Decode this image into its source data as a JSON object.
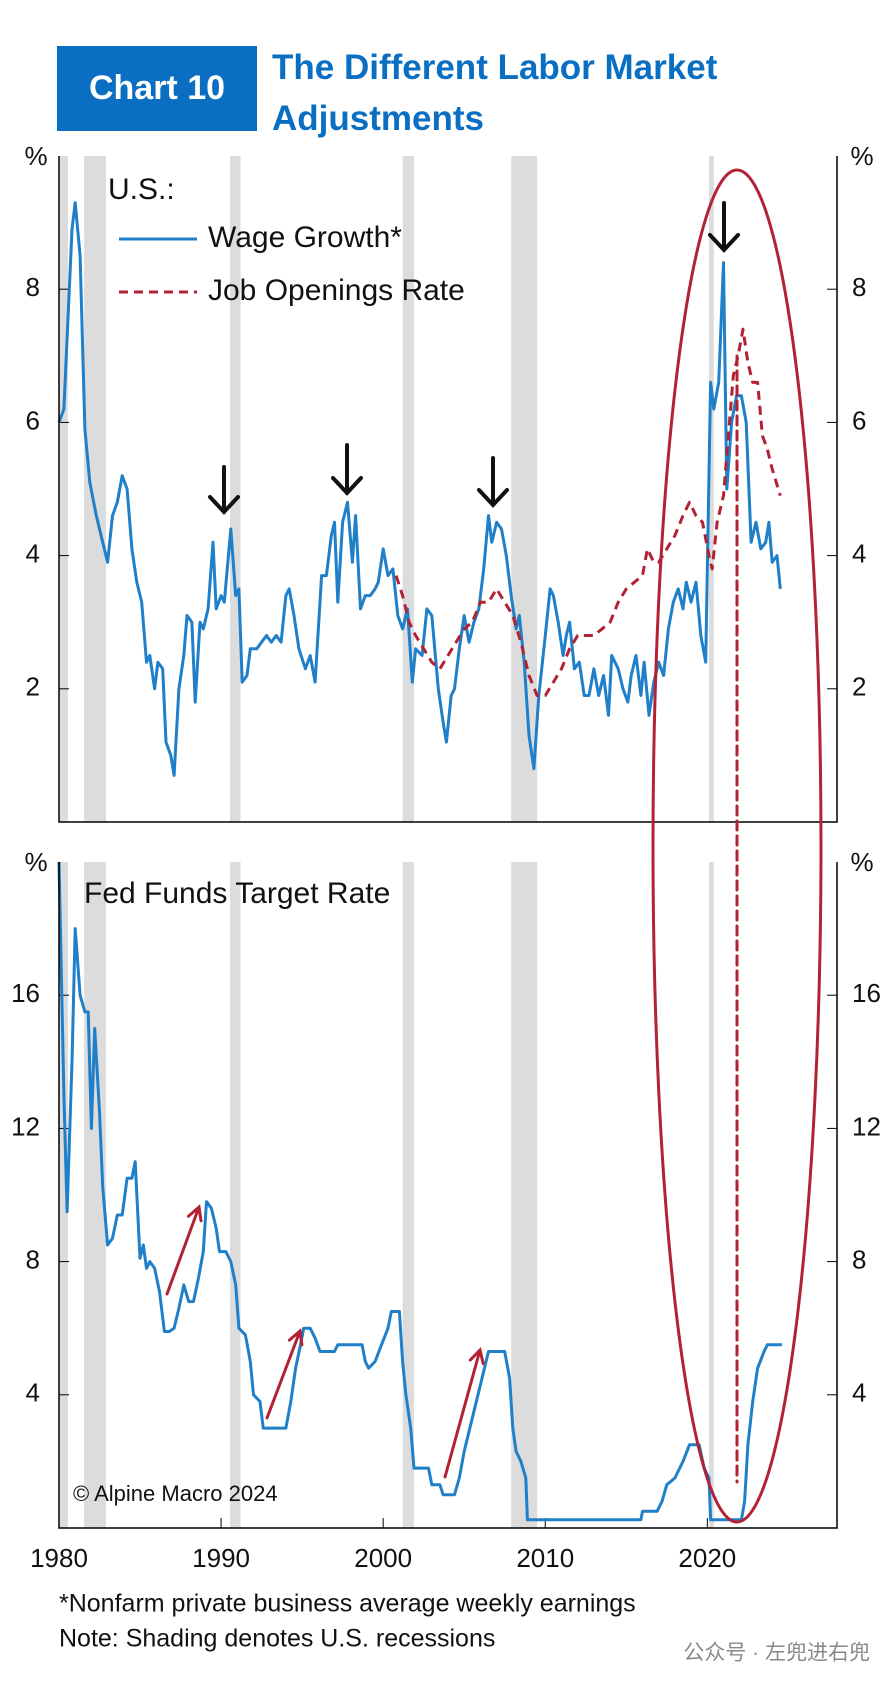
{
  "header": {
    "badge": "Chart 10",
    "title": "The Different Labor Market Adjustments"
  },
  "chart_data": [
    {
      "type": "line",
      "legend_title": "U.S.:",
      "ylabel": "%",
      "xlim": [
        1980,
        2028
      ],
      "ylim": [
        0,
        10
      ],
      "yticks": [
        2,
        4,
        6,
        8
      ],
      "recessions": [
        [
          1980.0,
          1980.55
        ],
        [
          1981.55,
          1982.9
        ],
        [
          1990.55,
          1991.2
        ],
        [
          2001.2,
          2001.9
        ],
        [
          2007.9,
          2009.5
        ],
        [
          2020.1,
          2020.4
        ]
      ],
      "series": [
        {
          "name": "Wage Growth*",
          "color": "#1f7fc8",
          "dash": false,
          "x": [
            1980,
            1980.3,
            1980.8,
            1981,
            1981.3,
            1981.6,
            1981.9,
            1982.3,
            1982.6,
            1983,
            1983.3,
            1983.6,
            1983.9,
            1984.2,
            1984.5,
            1984.8,
            1985.1,
            1985.4,
            1985.6,
            1985.9,
            1986.1,
            1986.4,
            1986.6,
            1986.9,
            1987.1,
            1987.4,
            1987.7,
            1987.9,
            1988.2,
            1988.4,
            1988.7,
            1988.9,
            1989.2,
            1989.5,
            1989.7,
            1990,
            1990.2,
            1990.6,
            1990.9,
            1991.1,
            1991.3,
            1991.6,
            1991.8,
            1992.2,
            1992.5,
            1992.8,
            1993.1,
            1993.4,
            1993.7,
            1994,
            1994.2,
            1994.5,
            1994.8,
            1995.2,
            1995.5,
            1995.8,
            1996.2,
            1996.5,
            1996.8,
            1997,
            1997.2,
            1997.5,
            1997.8,
            1998.1,
            1998.3,
            1998.6,
            1998.9,
            1999.2,
            1999.5,
            1999.7,
            2000,
            2000.3,
            2000.6,
            2000.9,
            2001.2,
            2001.5,
            2001.8,
            2002,
            2002.4,
            2002.7,
            2003,
            2003.4,
            2003.7,
            2003.9,
            2004.2,
            2004.4,
            2004.7,
            2005,
            2005.3,
            2005.6,
            2005.9,
            2006.2,
            2006.5,
            2006.7,
            2007,
            2007.3,
            2007.6,
            2007.9,
            2008.2,
            2008.4,
            2008.7,
            2009,
            2009.3,
            2009.6,
            2010,
            2010.3,
            2010.5,
            2010.8,
            2011.1,
            2011.3,
            2011.5,
            2011.8,
            2012.1,
            2012.4,
            2012.7,
            2013,
            2013.3,
            2013.6,
            2013.9,
            2014.1,
            2014.5,
            2014.8,
            2015.1,
            2015.3,
            2015.6,
            2015.9,
            2016.1,
            2016.4,
            2016.7,
            2017,
            2017.3,
            2017.6,
            2017.9,
            2018.2,
            2018.5,
            2018.7,
            2019,
            2019.3,
            2019.6,
            2019.9,
            2020.2,
            2020.4,
            2020.7,
            2021,
            2021.2,
            2021.5,
            2021.8,
            2022.1,
            2022.4,
            2022.7,
            2023,
            2023.3,
            2023.6,
            2023.8,
            2024,
            2024.3,
            2024.5
          ],
          "values": [
            6.0,
            6.2,
            8.9,
            9.3,
            8.5,
            5.9,
            5.1,
            4.6,
            4.3,
            3.9,
            4.6,
            4.8,
            5.2,
            5.0,
            4.1,
            3.6,
            3.3,
            2.4,
            2.5,
            2.0,
            2.4,
            2.3,
            1.2,
            1.0,
            0.7,
            2.0,
            2.5,
            3.1,
            3.0,
            1.8,
            3.0,
            2.9,
            3.2,
            4.2,
            3.2,
            3.4,
            3.3,
            4.4,
            3.4,
            3.5,
            2.1,
            2.2,
            2.6,
            2.6,
            2.7,
            2.8,
            2.7,
            2.8,
            2.7,
            3.4,
            3.5,
            3.1,
            2.6,
            2.3,
            2.5,
            2.1,
            3.7,
            3.7,
            4.3,
            4.5,
            3.3,
            4.5,
            4.8,
            3.9,
            4.6,
            3.2,
            3.4,
            3.4,
            3.5,
            3.6,
            4.1,
            3.7,
            3.8,
            3.1,
            2.9,
            3.2,
            2.1,
            2.6,
            2.5,
            3.2,
            3.1,
            2.0,
            1.5,
            1.2,
            1.9,
            2.0,
            2.6,
            3.1,
            2.7,
            3.0,
            3.2,
            3.8,
            4.6,
            4.2,
            4.5,
            4.4,
            4.0,
            3.4,
            2.9,
            3.1,
            2.4,
            1.3,
            0.8,
            1.9,
            2.8,
            3.5,
            3.4,
            3.0,
            2.5,
            2.8,
            3.0,
            2.3,
            2.4,
            1.9,
            1.9,
            2.3,
            1.9,
            2.2,
            1.6,
            2.5,
            2.3,
            2.0,
            1.8,
            2.2,
            2.5,
            1.9,
            2.4,
            1.6,
            2.1,
            2.4,
            2.2,
            2.9,
            3.3,
            3.5,
            3.2,
            3.6,
            3.3,
            3.6,
            2.8,
            2.4,
            6.6,
            6.2,
            6.6,
            8.4,
            5.0,
            6.0,
            6.4,
            6.4,
            6.0,
            4.2,
            4.5,
            4.1,
            4.2,
            4.5,
            3.9,
            4.0,
            3.5
          ]
        },
        {
          "name": "Job Openings Rate",
          "color": "#b22234",
          "dash": true,
          "x": [
            2000.8,
            2001.2,
            2001.6,
            2002,
            2002.5,
            2003,
            2003.5,
            2004,
            2004.5,
            2005,
            2005.5,
            2006,
            2006.5,
            2007,
            2007.5,
            2008,
            2008.5,
            2009,
            2009.5,
            2010,
            2010.5,
            2011,
            2011.5,
            2012,
            2012.5,
            2013,
            2013.5,
            2014,
            2014.5,
            2015,
            2015.5,
            2016,
            2016.3,
            2016.7,
            2017,
            2017.5,
            2018,
            2018.5,
            2018.9,
            2019.3,
            2019.7,
            2020.1,
            2020.3,
            2020.6,
            2021,
            2021.3,
            2021.6,
            2021.9,
            2022.2,
            2022.5,
            2022.8,
            2023.1,
            2023.4,
            2023.7,
            2024,
            2024.5
          ],
          "values": [
            3.7,
            3.4,
            3.0,
            2.8,
            2.6,
            2.4,
            2.3,
            2.5,
            2.7,
            2.9,
            3.0,
            3.3,
            3.3,
            3.5,
            3.3,
            3.1,
            2.7,
            2.2,
            1.9,
            1.9,
            2.1,
            2.3,
            2.6,
            2.8,
            2.8,
            2.8,
            2.9,
            3.0,
            3.3,
            3.5,
            3.6,
            3.7,
            4.1,
            3.9,
            3.9,
            4.1,
            4.3,
            4.6,
            4.8,
            4.6,
            4.5,
            4.0,
            3.8,
            4.5,
            4.9,
            5.8,
            6.7,
            7.0,
            7.4,
            6.9,
            6.6,
            6.6,
            5.8,
            5.6,
            5.3,
            4.9
          ]
        }
      ]
    },
    {
      "type": "line",
      "title": "Fed Funds Target Rate",
      "annotation": "© Alpine Macro 2024",
      "ylabel": "%",
      "xlim": [
        1980,
        2028
      ],
      "ylim": [
        0,
        20
      ],
      "yticks": [
        4,
        8,
        12,
        16
      ],
      "xticks": [
        1980,
        1990,
        2000,
        2010,
        2020
      ],
      "recessions": [
        [
          1980.0,
          1980.55
        ],
        [
          1981.55,
          1982.9
        ],
        [
          1990.55,
          1991.2
        ],
        [
          2001.2,
          2001.9
        ],
        [
          2007.9,
          2009.5
        ],
        [
          2020.1,
          2020.4
        ]
      ],
      "series": [
        {
          "name": "Fed Funds Target Rate",
          "color": "#1f7fc8",
          "dash": false,
          "x": [
            1980,
            1980.3,
            1980.5,
            1980.8,
            1981,
            1981.3,
            1981.6,
            1981.8,
            1982,
            1982.2,
            1982.5,
            1982.7,
            1983,
            1983.3,
            1983.6,
            1983.9,
            1984.2,
            1984.5,
            1984.7,
            1985,
            1985.2,
            1985.4,
            1985.6,
            1985.9,
            1986.2,
            1986.5,
            1986.8,
            1987.1,
            1987.4,
            1987.7,
            1988,
            1988.3,
            1988.6,
            1988.9,
            1989.1,
            1989.4,
            1989.7,
            1989.9,
            1990.3,
            1990.6,
            1990.9,
            1991.1,
            1991.5,
            1991.8,
            1992,
            1992.4,
            1992.6,
            1993.5,
            1994,
            1994.3,
            1994.6,
            1994.9,
            1995.1,
            1995.5,
            1995.8,
            1996.1,
            1997,
            1997.2,
            1998.7,
            1998.9,
            1999.1,
            1999.5,
            1999.9,
            2000.3,
            2000.5,
            2001,
            2001.2,
            2001.4,
            2001.7,
            2001.9,
            2002.8,
            2003,
            2003.5,
            2003.7,
            2004.4,
            2004.7,
            2005,
            2005.5,
            2006,
            2006.5,
            2007.5,
            2007.8,
            2008,
            2008.2,
            2008.5,
            2008.8,
            2008.9,
            2015.9,
            2016,
            2016.9,
            2017.2,
            2017.5,
            2018,
            2018.5,
            2018.9,
            2019.5,
            2019.8,
            2020.1,
            2020.2,
            2022.1,
            2022.3,
            2022.5,
            2022.8,
            2023.1,
            2023.5,
            2023.7,
            2024.6
          ],
          "values": [
            20,
            13,
            9.5,
            14,
            18,
            16,
            15.5,
            15.5,
            12,
            15,
            12.5,
            10.2,
            8.5,
            8.7,
            9.4,
            9.4,
            10.5,
            10.5,
            11,
            8.1,
            8.5,
            7.8,
            8.0,
            7.8,
            7.1,
            5.9,
            5.9,
            6.0,
            6.6,
            7.3,
            6.8,
            6.8,
            7.5,
            8.3,
            9.8,
            9.6,
            9.0,
            8.3,
            8.3,
            8.0,
            7.3,
            6.0,
            5.8,
            5.0,
            4.0,
            3.8,
            3.0,
            3.0,
            3.0,
            3.8,
            4.8,
            5.5,
            6.0,
            6.0,
            5.7,
            5.3,
            5.3,
            5.5,
            5.5,
            5.0,
            4.8,
            5.0,
            5.5,
            6.0,
            6.5,
            6.5,
            5.0,
            4.0,
            3.0,
            1.8,
            1.8,
            1.3,
            1.3,
            1.0,
            1.0,
            1.5,
            2.3,
            3.3,
            4.3,
            5.3,
            5.3,
            4.5,
            3.0,
            2.3,
            2.0,
            1.5,
            0.25,
            0.25,
            0.5,
            0.5,
            0.8,
            1.3,
            1.5,
            2.0,
            2.5,
            2.5,
            1.8,
            1.5,
            0.25,
            0.25,
            0.8,
            2.5,
            3.8,
            4.8,
            5.3,
            5.5,
            5.5
          ]
        }
      ]
    }
  ],
  "footnotes": [
    "*Nonfarm private business average weekly earnings",
    "Note: Shading denotes U.S. recessions"
  ],
  "watermark": "公众号 · 左兜进右兜"
}
